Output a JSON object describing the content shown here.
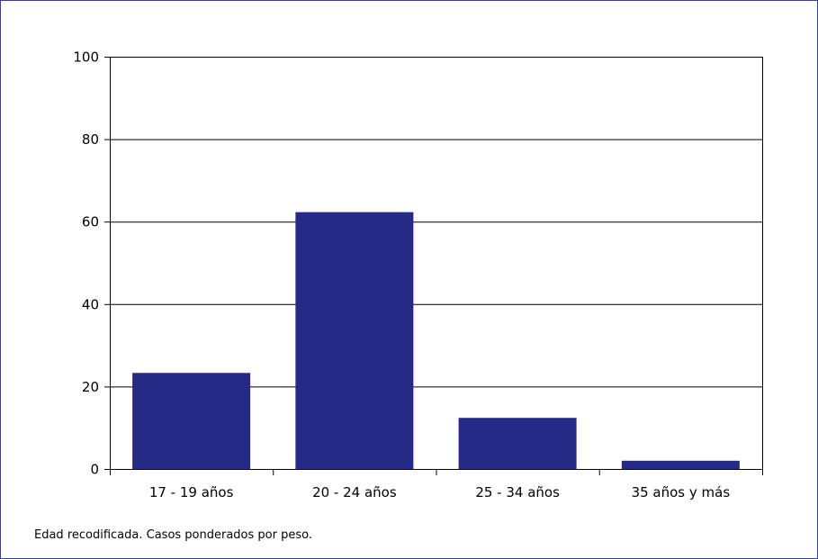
{
  "colors": {
    "bar": "#262a86",
    "frame": "#3b3f8f",
    "grid": "#000000"
  },
  "footnote": "Edad recodificada. Casos ponderados por peso.",
  "chart_data": {
    "type": "bar",
    "categories": [
      "17 - 19 años",
      "20 - 24 años",
      "25 - 34 años",
      "35 años y más"
    ],
    "values": [
      23.3,
      62.3,
      12.4,
      2.0
    ],
    "title": "",
    "xlabel": "",
    "ylabel": "",
    "ylim": [
      0,
      100
    ],
    "yticks": [
      0,
      20,
      40,
      60,
      80,
      100
    ],
    "grid": true,
    "legend": "none"
  }
}
